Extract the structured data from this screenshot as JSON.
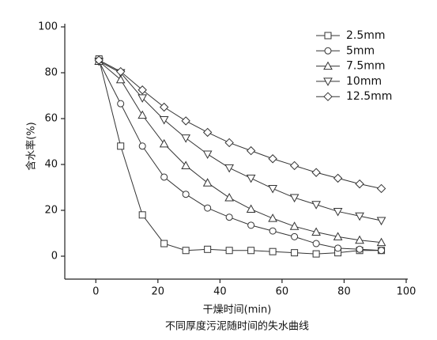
{
  "chart_data": {
    "type": "line",
    "x_label": "干燥时间(min)",
    "y_label": "含水率(%)",
    "caption": "不同厚度污泥随时间的失水曲线",
    "x": [
      1,
      8,
      15,
      22,
      29,
      36,
      43,
      50,
      57,
      64,
      71,
      78,
      85,
      92
    ],
    "series": [
      {
        "name": "2.5mm",
        "color": "#333333",
        "marker": "square",
        "values": [
          86,
          48,
          18,
          5.5,
          2.5,
          3,
          2.5,
          2.5,
          2,
          1.5,
          1,
          1.5,
          2.5,
          2.5
        ]
      },
      {
        "name": "5mm",
        "color": "#333333",
        "marker": "circle",
        "values": [
          85,
          66.5,
          48,
          34.5,
          27,
          21,
          17,
          13.5,
          11,
          8.5,
          5.5,
          3.5,
          3,
          2.5
        ]
      },
      {
        "name": "7.5mm",
        "color": "#333333",
        "marker": "triangle-up",
        "values": [
          85,
          77,
          61.5,
          49,
          39.5,
          32,
          25.5,
          20.5,
          16.5,
          13,
          10.5,
          8.5,
          7,
          6
        ]
      },
      {
        "name": "10mm",
        "color": "#333333",
        "marker": "triangle-down",
        "values": [
          85,
          80,
          69,
          59.5,
          51.5,
          44.5,
          38.5,
          34,
          29.5,
          25.5,
          22.5,
          19.5,
          17.5,
          15.5
        ]
      },
      {
        "name": "12.5mm",
        "color": "#333333",
        "marker": "diamond",
        "values": [
          85.5,
          80.5,
          72.5,
          65,
          59,
          54,
          49.5,
          46,
          42.5,
          39.5,
          36.5,
          34,
          31.5,
          29.5
        ]
      }
    ],
    "xlim": [
      -10,
      100
    ],
    "ylim": [
      -10,
      100
    ],
    "xticks": [
      0,
      20,
      40,
      60,
      80,
      100
    ],
    "yticks": [
      0,
      20,
      40,
      60,
      80,
      100
    ],
    "legend": "upper-right"
  }
}
